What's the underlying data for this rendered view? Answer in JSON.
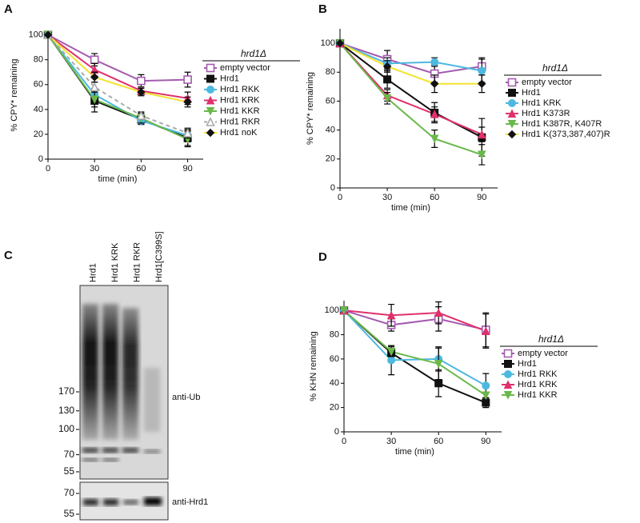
{
  "chart_data": [
    {
      "type": "line",
      "panel_label": "A",
      "y_label": "% CPY* remaining",
      "x_label": "time (min)",
      "legend_title": "hrd1Δ",
      "x": [
        0,
        30,
        60,
        90
      ],
      "xlim": [
        0,
        100
      ],
      "xticks": [
        0,
        30,
        60,
        90
      ],
      "ylim": [
        0,
        103
      ],
      "yticks": [
        0,
        20,
        40,
        60,
        80,
        100
      ],
      "series": [
        {
          "name": "empty vector",
          "color": "#a45ab0",
          "marker": "square-open",
          "values": [
            100,
            80,
            63,
            64
          ],
          "errors": [
            0,
            5,
            5,
            6
          ]
        },
        {
          "name": "Hrd1",
          "color": "#111111",
          "marker": "square",
          "values": [
            100,
            47,
            32,
            17
          ],
          "errors": [
            0,
            9,
            4,
            6
          ]
        },
        {
          "name": "Hrd1 RKK",
          "color": "#4db8e0",
          "marker": "circle",
          "values": [
            100,
            52,
            31,
            19
          ],
          "errors": [
            0,
            5,
            3,
            5
          ]
        },
        {
          "name": "Hrd1 KRK",
          "color": "#e0306c",
          "marker": "triangle",
          "values": [
            100,
            72,
            55,
            49
          ],
          "errors": [
            0,
            5,
            3,
            5
          ]
        },
        {
          "name": "Hrd1 KKR",
          "color": "#6ab84a",
          "marker": "triangle-down",
          "values": [
            100,
            48,
            33,
            16
          ],
          "errors": [
            0,
            6,
            4,
            6
          ]
        },
        {
          "name": "Hrd1 RKR",
          "color": "#aaaaaa",
          "marker": "triangle-open",
          "dash": true,
          "values": [
            100,
            58,
            35,
            21
          ],
          "errors": [
            0,
            4,
            3,
            4
          ]
        },
        {
          "name": "Hrd1 noK",
          "color": "#f2e22e",
          "marker": "diamond",
          "marker_color": "#111111",
          "values": [
            100,
            66,
            54,
            46
          ],
          "errors": [
            0,
            4,
            3,
            4
          ]
        }
      ]
    },
    {
      "type": "line",
      "panel_label": "B",
      "y_label": "% CPY* remaining",
      "x_label": "time (min)",
      "legend_title": "hrd1Δ",
      "x": [
        0,
        30,
        60,
        90
      ],
      "xlim": [
        0,
        100
      ],
      "xticks": [
        0,
        30,
        60,
        90
      ],
      "ylim": [
        0,
        110
      ],
      "yticks": [
        0,
        20,
        40,
        60,
        80,
        100
      ],
      "series": [
        {
          "name": "empty vector",
          "color": "#a45ab0",
          "marker": "square-open",
          "values": [
            100,
            89,
            79,
            84
          ],
          "errors": [
            0,
            6,
            6,
            6
          ]
        },
        {
          "name": "Hrd1",
          "color": "#111111",
          "marker": "square",
          "values": [
            100,
            75,
            52,
            35
          ],
          "errors": [
            0,
            6,
            7,
            13
          ]
        },
        {
          "name": "Hrd1 KRK",
          "color": "#4db8e0",
          "marker": "circle",
          "values": [
            100,
            86,
            87,
            81
          ],
          "errors": [
            0,
            4,
            3,
            8
          ]
        },
        {
          "name": "Hrd1 K373R",
          "color": "#e0306c",
          "marker": "triangle",
          "values": [
            100,
            64,
            51,
            37
          ],
          "errors": [
            0,
            4,
            5,
            5
          ]
        },
        {
          "name": "Hrd1 K387R, K407R",
          "color": "#6ab84a",
          "marker": "triangle-down",
          "values": [
            100,
            62,
            34,
            23
          ],
          "errors": [
            0,
            4,
            6,
            7
          ]
        },
        {
          "name": "Hrd1 K(373,387,407)R",
          "color": "#f2e22e",
          "marker": "diamond",
          "marker_color": "#111111",
          "values": [
            100,
            84,
            72,
            72
          ],
          "errors": [
            0,
            4,
            6,
            6
          ]
        }
      ]
    },
    {
      "type": "blot",
      "panel_label": "C",
      "lanes": [
        "Hrd1",
        "Hrd1 KRK",
        "Hrd1 RKR",
        "Hrd1[C399S]"
      ],
      "ub_markers": [
        170,
        130,
        100,
        70,
        55
      ],
      "ub_label": "anti-Ub",
      "hrd1_markers": [
        70,
        55
      ],
      "hrd1_label": "anti-Hrd1"
    },
    {
      "type": "line",
      "panel_label": "D",
      "y_label": "% KHN remaining",
      "x_label": "time (min)",
      "legend_title": "hrd1Δ",
      "x": [
        0,
        30,
        60,
        90
      ],
      "xlim": [
        0,
        100
      ],
      "xticks": [
        0,
        30,
        60,
        90
      ],
      "ylim": [
        0,
        108
      ],
      "yticks": [
        0,
        20,
        40,
        60,
        80,
        100
      ],
      "series": [
        {
          "name": "empty vector",
          "color": "#a45ab0",
          "marker": "square-open",
          "values": [
            100,
            88,
            93,
            84
          ],
          "errors": [
            0,
            5,
            10,
            14
          ]
        },
        {
          "name": "Hrd1",
          "color": "#111111",
          "marker": "square",
          "values": [
            100,
            65,
            40,
            24
          ],
          "errors": [
            0,
            6,
            11,
            4
          ]
        },
        {
          "name": "Hrd1 RKK",
          "color": "#4db8e0",
          "marker": "circle",
          "values": [
            100,
            59,
            60,
            38
          ],
          "errors": [
            0,
            12,
            10,
            10
          ]
        },
        {
          "name": "Hrd1 KRK",
          "color": "#e0306c",
          "marker": "triangle",
          "values": [
            100,
            96,
            98,
            83
          ],
          "errors": [
            0,
            9,
            9,
            14
          ]
        },
        {
          "name": "Hrd1 KKR",
          "color": "#6ab84a",
          "marker": "triangle-down",
          "values": [
            100,
            66,
            56,
            30
          ],
          "errors": [
            0,
            4,
            13,
            2
          ]
        }
      ]
    }
  ]
}
